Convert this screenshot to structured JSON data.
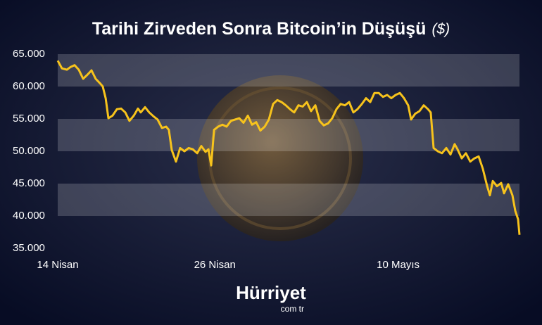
{
  "chart_data": {
    "type": "line",
    "title": "Tarihi Zirveden Sonra Bitcoin’in Düşüşü",
    "title_unit": "($)",
    "x": [
      0,
      0.32,
      0.7,
      0.97,
      1.29,
      1.61,
      1.94,
      2.26,
      2.58,
      2.9,
      3.23,
      3.44,
      3.66,
      3.87,
      4.19,
      4.52,
      4.84,
      5.16,
      5.48,
      5.81,
      6.13,
      6.34,
      6.67,
      6.99,
      7.31,
      7.63,
      7.96,
      8.28,
      8.49,
      8.71,
      9.03,
      9.35,
      9.68,
      10.0,
      10.32,
      10.65,
      10.97,
      11.29,
      11.51,
      11.72,
      11.94,
      12.26,
      12.58,
      12.9,
      13.23,
      13.55,
      13.87,
      14.19,
      14.52,
      14.84,
      15.16,
      15.48,
      15.81,
      16.13,
      16.45,
      16.77,
      17.1,
      17.42,
      17.74,
      18.06,
      18.39,
      18.71,
      19.03,
      19.35,
      19.68,
      20.0,
      20.32,
      20.65,
      20.97,
      21.29,
      21.61,
      21.94,
      22.26,
      22.58,
      22.9,
      23.23,
      23.55,
      23.87,
      24.19,
      24.52,
      24.84,
      25.16,
      25.48,
      25.81,
      26.13,
      26.45,
      26.77,
      26.99,
      27.31,
      27.63,
      27.96,
      28.28,
      28.49,
      28.71,
      29.03,
      29.35,
      29.68,
      30.0,
      30.32,
      30.54,
      30.86,
      31.18,
      31.51,
      31.83,
      32.15,
      32.47,
      32.8,
      33.01,
      33.23,
      33.55,
      33.87,
      34.09,
      34.41,
      34.73,
      34.95,
      35.16,
      35.27
    ],
    "values": [
      64000,
      62800,
      62600,
      63000,
      63300,
      62600,
      61200,
      61800,
      62500,
      61200,
      60500,
      60000,
      58200,
      55100,
      55500,
      56500,
      56600,
      56000,
      54700,
      55500,
      56600,
      56000,
      56800,
      56000,
      55400,
      54900,
      53600,
      53800,
      53300,
      50200,
      48400,
      50500,
      50000,
      50500,
      50300,
      49700,
      50800,
      49900,
      50300,
      47800,
      53300,
      53800,
      54100,
      53800,
      54700,
      54900,
      55100,
      54400,
      55500,
      54100,
      54500,
      53200,
      53800,
      54900,
      57300,
      57900,
      57600,
      57100,
      56500,
      56000,
      57100,
      56900,
      57600,
      56200,
      57100,
      54700,
      54000,
      54300,
      55100,
      56500,
      57300,
      57100,
      57600,
      56000,
      56500,
      57300,
      58200,
      57600,
      59000,
      59000,
      58400,
      58700,
      58200,
      58700,
      59000,
      58200,
      57100,
      54900,
      55800,
      56200,
      57100,
      56500,
      56000,
      50500,
      50000,
      49700,
      50500,
      49500,
      51100,
      50300,
      48900,
      49700,
      48400,
      48900,
      49200,
      47300,
      44600,
      43200,
      45400,
      44600,
      45100,
      43500,
      44900,
      43200,
      40800,
      39500,
      37100
    ],
    "color": "#f7c31c",
    "xlim": [
      0,
      35.27
    ],
    "xticks": [
      {
        "value": 0,
        "label": "14 Nisan"
      },
      {
        "value": 12,
        "label": "26 Nisan"
      },
      {
        "value": 26,
        "label": "10 Mayıs"
      }
    ],
    "ylim": [
      35000,
      65000
    ],
    "yticks": [
      {
        "value": 35000,
        "label": "35.000"
      },
      {
        "value": 40000,
        "label": "40.000"
      },
      {
        "value": 45000,
        "label": "45.000"
      },
      {
        "value": 50000,
        "label": "50.000"
      },
      {
        "value": 55000,
        "label": "55.000"
      },
      {
        "value": 60000,
        "label": "60.000"
      },
      {
        "value": 65000,
        "label": "65.000"
      }
    ],
    "grid": true
  },
  "brand": {
    "name": "Hürriyet",
    "sub": "com tr"
  }
}
